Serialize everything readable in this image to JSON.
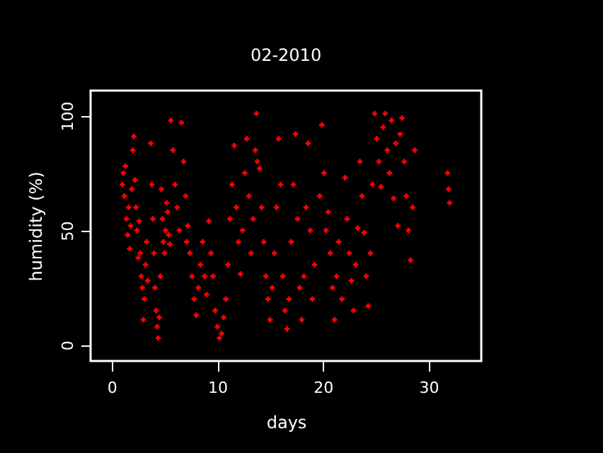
{
  "chart_data": {
    "type": "scatter",
    "title": "02-2010",
    "xlabel": "days",
    "ylabel": "humidity (%)",
    "xlim": [
      -2,
      35
    ],
    "ylim": [
      -7,
      111
    ],
    "xticks": [
      0,
      10,
      20,
      30
    ],
    "yticks": [
      0,
      50,
      100
    ],
    "grid": false,
    "marker": "cross",
    "series": [
      {
        "color": "#ff0000",
        "x": [
          1.0,
          1.1,
          1.2,
          1.3,
          1.4,
          1.5,
          1.6,
          1.7,
          1.8,
          1.9,
          2.0,
          2.1,
          2.2,
          2.3,
          2.4,
          2.5,
          2.6,
          2.7,
          2.8,
          2.9,
          3.0,
          3.1,
          3.2,
          3.3,
          3.4,
          3.7,
          3.8,
          3.9,
          4.0,
          4.1,
          4.2,
          4.3,
          4.4,
          4.5,
          4.6,
          4.7,
          4.8,
          4.9,
          5.0,
          5.1,
          5.2,
          5.3,
          5.4,
          5.5,
          5.6,
          5.8,
          6.0,
          6.2,
          6.4,
          6.6,
          6.8,
          7.0,
          7.1,
          7.2,
          7.4,
          7.6,
          7.8,
          8.0,
          8.2,
          8.4,
          8.6,
          8.8,
          9.0,
          9.2,
          9.4,
          9.6,
          9.8,
          10.0,
          10.2,
          10.4,
          10.6,
          10.8,
          11.0,
          11.2,
          11.4,
          11.6,
          11.8,
          12.0,
          12.2,
          12.4,
          12.6,
          12.8,
          13.0,
          13.2,
          13.4,
          13.6,
          13.7,
          13.8,
          14.0,
          14.2,
          14.4,
          14.6,
          14.8,
          15.0,
          15.2,
          15.4,
          15.6,
          15.8,
          16.0,
          16.2,
          16.4,
          16.6,
          16.8,
          17.0,
          17.2,
          17.4,
          17.6,
          17.8,
          18.0,
          18.2,
          18.4,
          18.6,
          18.8,
          19.0,
          19.2,
          19.7,
          19.9,
          20.1,
          20.3,
          20.5,
          20.7,
          20.9,
          21.1,
          21.3,
          21.5,
          21.8,
          22.1,
          22.3,
          22.5,
          22.7,
          22.9,
          23.1,
          23.3,
          23.5,
          23.7,
          23.9,
          24.1,
          24.3,
          24.5,
          24.7,
          24.9,
          25.1,
          25.3,
          25.5,
          25.7,
          25.9,
          26.1,
          26.3,
          26.5,
          26.7,
          26.9,
          27.1,
          27.3,
          27.5,
          27.7,
          27.9,
          28.1,
          28.3,
          28.5,
          28.7,
          31.8,
          31.9,
          32.0
        ],
        "values": [
          70,
          75,
          65,
          78,
          55,
          48,
          60,
          42,
          52,
          68,
          85,
          91,
          72,
          60,
          50,
          38,
          54,
          40,
          30,
          25,
          11,
          20,
          35,
          45,
          28,
          88,
          70,
          55,
          40,
          25,
          15,
          8,
          3,
          12,
          30,
          68,
          55,
          45,
          40,
          50,
          62,
          58,
          48,
          44,
          98,
          85,
          70,
          60,
          50,
          97,
          80,
          65,
          45,
          52,
          40,
          30,
          20,
          13,
          25,
          35,
          45,
          30,
          22,
          54,
          40,
          30,
          15,
          8,
          3,
          5,
          12,
          20,
          35,
          55,
          70,
          87,
          60,
          45,
          31,
          50,
          75,
          90,
          65,
          40,
          55,
          85,
          101,
          80,
          77,
          60,
          45,
          30,
          20,
          11,
          25,
          40,
          60,
          90,
          70,
          30,
          15,
          7,
          20,
          45,
          70,
          92,
          55,
          25,
          11,
          30,
          60,
          88,
          50,
          20,
          35,
          65,
          96,
          75,
          50,
          58,
          40,
          25,
          11,
          30,
          45,
          20,
          73,
          55,
          40,
          28,
          15,
          35,
          51,
          80,
          65,
          49,
          30,
          17,
          40,
          70,
          101,
          90,
          80,
          69,
          95,
          101,
          85,
          75,
          98,
          64,
          88,
          52,
          92,
          99,
          80,
          65,
          50,
          37,
          60,
          85,
          75,
          68,
          62
        ]
      }
    ]
  }
}
